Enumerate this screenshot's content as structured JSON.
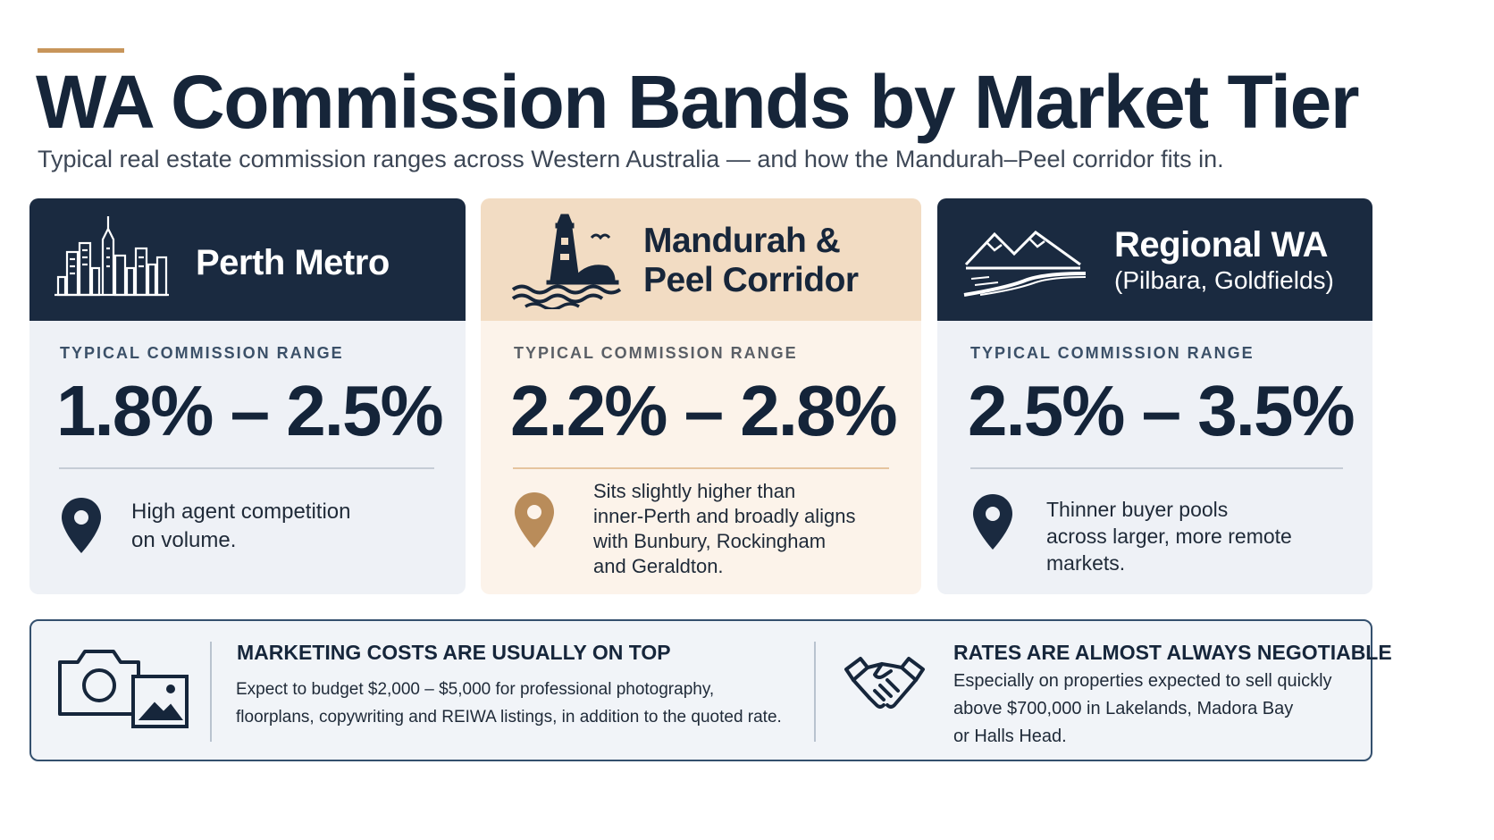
{
  "page": {
    "title": "WA Commission Bands by Market Tier",
    "subtitle": "Typical real estate commission ranges across Western Australia — and how the Mandurah–Peel corridor fits in."
  },
  "colors": {
    "navy": "#1a2a40",
    "accent_gold": "#c8955a",
    "sand": "#f2dcc3",
    "light_panel": "#eef1f6"
  },
  "tiers": [
    {
      "icon": "city-skyline-icon",
      "title": "Perth Metro",
      "range_label": "TYPICAL COMMISSION RANGE",
      "range": "1.8% – 2.5%",
      "note_icon": "location-pin-icon",
      "note_lines": [
        "High agent competition",
        "on volume."
      ]
    },
    {
      "icon": "lighthouse-icon",
      "title_lines": [
        "Mandurah &",
        "Peel Corridor"
      ],
      "range_label": "TYPICAL COMMISSION RANGE",
      "range": "2.2% – 2.8%",
      "note_icon": "location-pin-icon",
      "note_lines": [
        "Sits slightly higher than",
        "inner-Perth and broadly aligns",
        "with Bunbury, Rockingham",
        "and Geraldton."
      ]
    },
    {
      "icon": "mountains-road-icon",
      "title": "Regional WA",
      "subtitle": "(Pilbara, Goldfields)",
      "range_label": "TYPICAL COMMISSION RANGE",
      "range": "2.5% – 3.5%",
      "note_icon": "location-pin-icon",
      "note_lines": [
        "Thinner buyer pools",
        "across larger, more remote",
        "markets."
      ]
    }
  ],
  "footer": {
    "marketing": {
      "icon": "camera-photo-icon",
      "title": "MARKETING COSTS ARE USUALLY ON TOP",
      "lines": [
        "Expect to budget $2,000 – $5,000 for professional photography,",
        "floorplans, copywriting and REIWA listings, in addition to the quoted rate."
      ]
    },
    "negotiable": {
      "icon": "handshake-icon",
      "title": "RATES ARE ALMOST ALWAYS NEGOTIABLE",
      "lines": [
        "Especially on properties expected to sell quickly",
        "above $700,000 in Lakelands, Madora Bay",
        "or Halls Head."
      ]
    }
  }
}
